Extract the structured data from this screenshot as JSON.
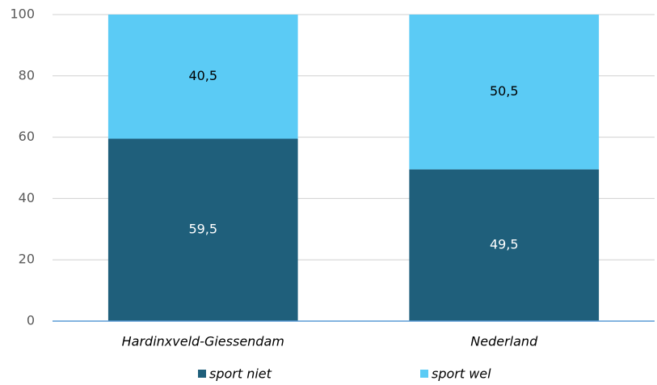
{
  "chart_data": {
    "type": "stacked_bar",
    "categories": [
      "Hardinxveld-Giessendam",
      "Nederland"
    ],
    "series": [
      {
        "name": "sport niet",
        "color": "#1f5f7b",
        "values": [
          59.5,
          49.5
        ],
        "value_labels": [
          "59,5",
          "49,5"
        ],
        "label_color": "#ffffff"
      },
      {
        "name": "sport wel",
        "color": "#5bcbf5",
        "values": [
          40.5,
          50.5
        ],
        "value_labels": [
          "40,5",
          "50,5"
        ],
        "label_color": "#000000"
      }
    ],
    "ylim": [
      0,
      100
    ],
    "yticks": [
      0,
      20,
      40,
      60,
      80,
      100
    ],
    "grid": true,
    "legend": "bottom"
  }
}
